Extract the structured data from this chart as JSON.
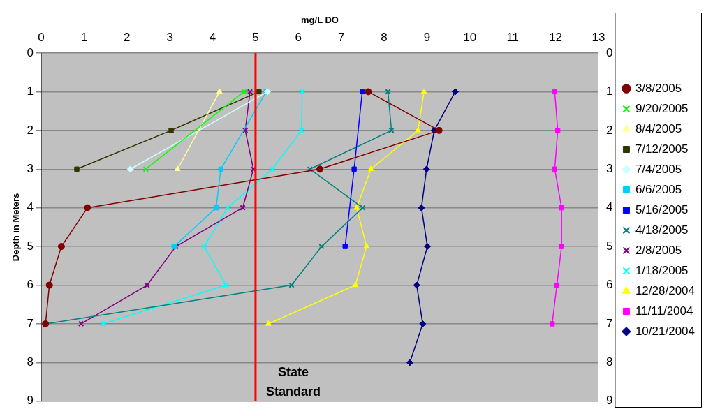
{
  "chart_data": {
    "type": "line",
    "xlabel": "mg/L DO",
    "ylabel": "Depth in Meters",
    "xlim": [
      0,
      13
    ],
    "xticks": [
      0,
      1,
      2,
      3,
      4,
      5,
      6,
      7,
      8,
      9,
      10,
      11,
      12,
      13
    ],
    "ylim": [
      9,
      0
    ],
    "yticks": [
      0,
      1,
      2,
      3,
      4,
      5,
      6,
      7,
      8,
      9
    ],
    "y2lim": [
      9,
      0
    ],
    "y2ticks": [
      0,
      1,
      2,
      3,
      4,
      5,
      6,
      7,
      8,
      9
    ],
    "grid": "y",
    "legend": "right",
    "ref_lines": [
      {
        "axis": "x",
        "value": 5,
        "label": "State Standard",
        "color": "#ff0000"
      }
    ],
    "series": [
      {
        "name": "10/21/2004",
        "color": "#000080",
        "marker": "diamond",
        "x": [
          9.66,
          9.17,
          8.99,
          8.87,
          9.01,
          8.76,
          8.9,
          8.6
        ],
        "values": [
          1,
          2,
          3,
          4,
          5,
          6,
          7,
          8
        ]
      },
      {
        "name": "11/11/2004",
        "color": "#ff00ff",
        "marker": "square",
        "x": [
          11.98,
          12.05,
          11.98,
          12.14,
          12.14,
          12.03,
          11.92
        ],
        "values": [
          1,
          2,
          3,
          4,
          5,
          6,
          7
        ]
      },
      {
        "name": "12/28/2004",
        "color": "#ffff00",
        "marker": "triangle",
        "x": [
          8.93,
          8.79,
          7.69,
          7.36,
          7.59,
          7.33,
          5.3
        ],
        "values": [
          1,
          2,
          3,
          4,
          5,
          6,
          7
        ]
      },
      {
        "name": "1/18/2005",
        "color": "#00ffff",
        "marker": "cross",
        "x": [
          6.09,
          6.07,
          5.39,
          4.35,
          3.8,
          4.31,
          1.44
        ],
        "values": [
          1,
          2,
          3,
          4,
          5,
          6,
          7
        ]
      },
      {
        "name": "2/8/2005",
        "color": "#800080",
        "marker": "cross",
        "x": [
          4.87,
          4.76,
          4.95,
          4.7,
          3.14,
          2.47,
          0.93
        ],
        "values": [
          1,
          2,
          3,
          4,
          5,
          6,
          7
        ]
      },
      {
        "name": "4/18/2005",
        "color": "#008080",
        "marker": "cross",
        "x": [
          8.09,
          8.17,
          6.27,
          7.5,
          6.54,
          5.84,
          0.1
        ],
        "values": [
          1,
          2,
          3,
          4,
          5,
          6,
          7
        ]
      },
      {
        "name": "5/16/2005",
        "color": "#0000ff",
        "marker": "square",
        "x": [
          7.49,
          7.3,
          7.09
        ],
        "values": [
          1,
          3,
          5
        ]
      },
      {
        "name": "6/6/2005",
        "color": "#00ccff",
        "marker": "square",
        "x": [
          5.25,
          4.19,
          4.08,
          3.1
        ],
        "values": [
          1,
          3,
          4,
          5
        ]
      },
      {
        "name": "7/4/2005",
        "color": "#ccffff",
        "marker": "diamond",
        "x": [
          5.28,
          2.08
        ],
        "values": [
          1,
          3
        ]
      },
      {
        "name": "7/12/2005",
        "color": "#333300",
        "marker": "square",
        "x": [
          5.08,
          3.03,
          0.83
        ],
        "values": [
          1,
          2,
          3
        ]
      },
      {
        "name": "8/4/2005",
        "color": "#ffff99",
        "marker": "triangle",
        "x": [
          4.16,
          3.18
        ],
        "values": [
          1,
          3
        ]
      },
      {
        "name": "9/20/2005",
        "color": "#00ff00",
        "marker": "cross",
        "x": [
          4.73,
          2.44
        ],
        "values": [
          1,
          3
        ]
      },
      {
        "name": "3/8/2005",
        "color": "#800000",
        "marker": "circle",
        "x": [
          7.63,
          9.28,
          6.5,
          1.08,
          0.47,
          0.19,
          0.1
        ],
        "values": [
          1,
          2,
          3,
          4,
          5,
          6,
          7
        ]
      }
    ]
  }
}
